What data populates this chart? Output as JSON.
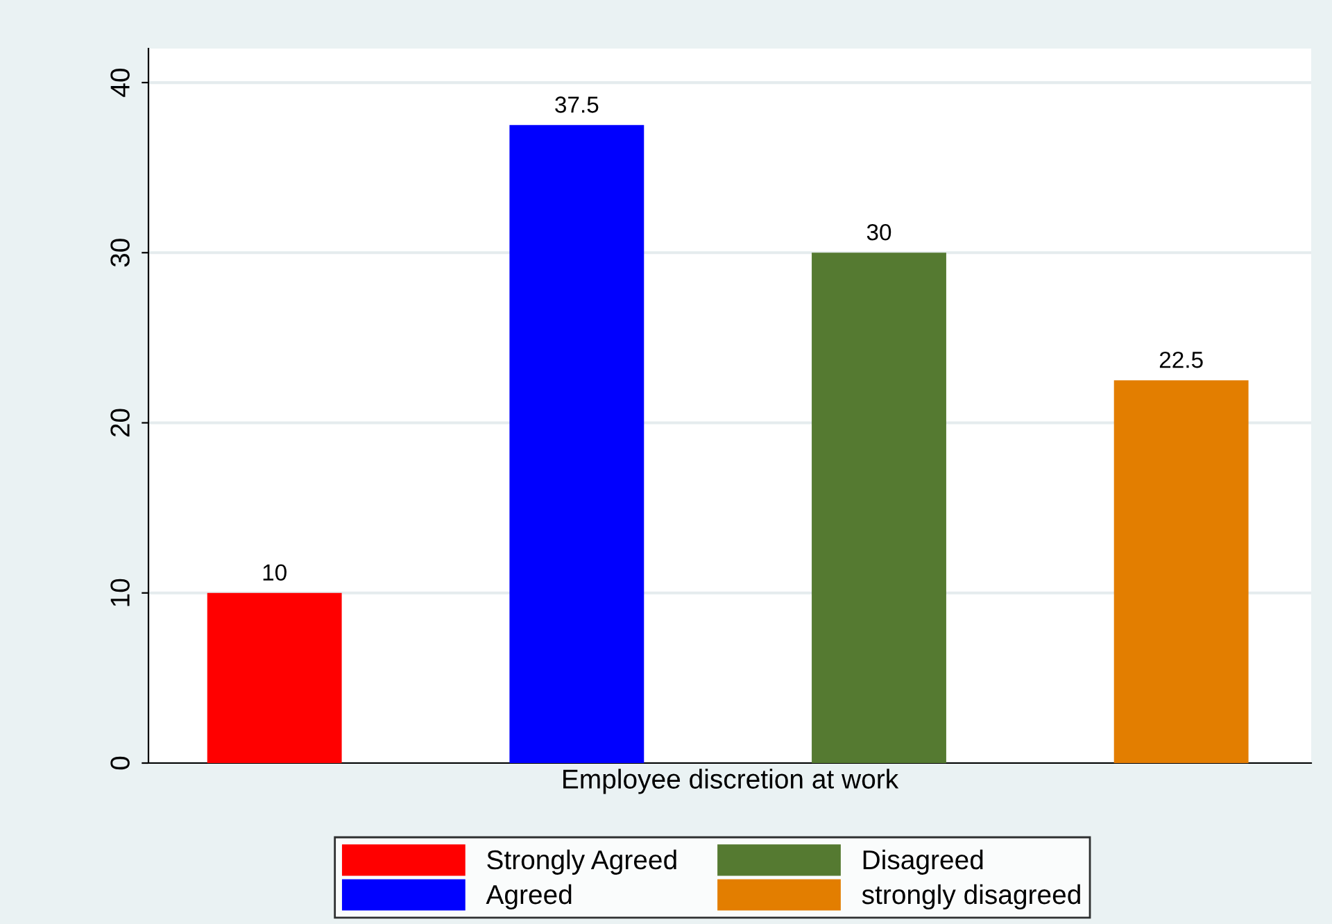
{
  "chart_data": {
    "type": "bar",
    "xlabel": "Employee discretion at work",
    "series": [
      {
        "name": "Strongly Agreed",
        "color": "#ff0000",
        "values": [
          10
        ]
      },
      {
        "name": "Agreed",
        "color": "#0000ff",
        "values": [
          37.5
        ]
      },
      {
        "name": "Disagreed",
        "color": "#557a31",
        "values": [
          30
        ]
      },
      {
        "name": "strongly disagreed",
        "color": "#e37e00",
        "values": [
          22.5
        ]
      }
    ],
    "ylim": [
      0,
      42
    ],
    "yticks": [
      0,
      10,
      20,
      30,
      40
    ],
    "grid": "y",
    "legend": "bottom",
    "data_labels": true
  }
}
